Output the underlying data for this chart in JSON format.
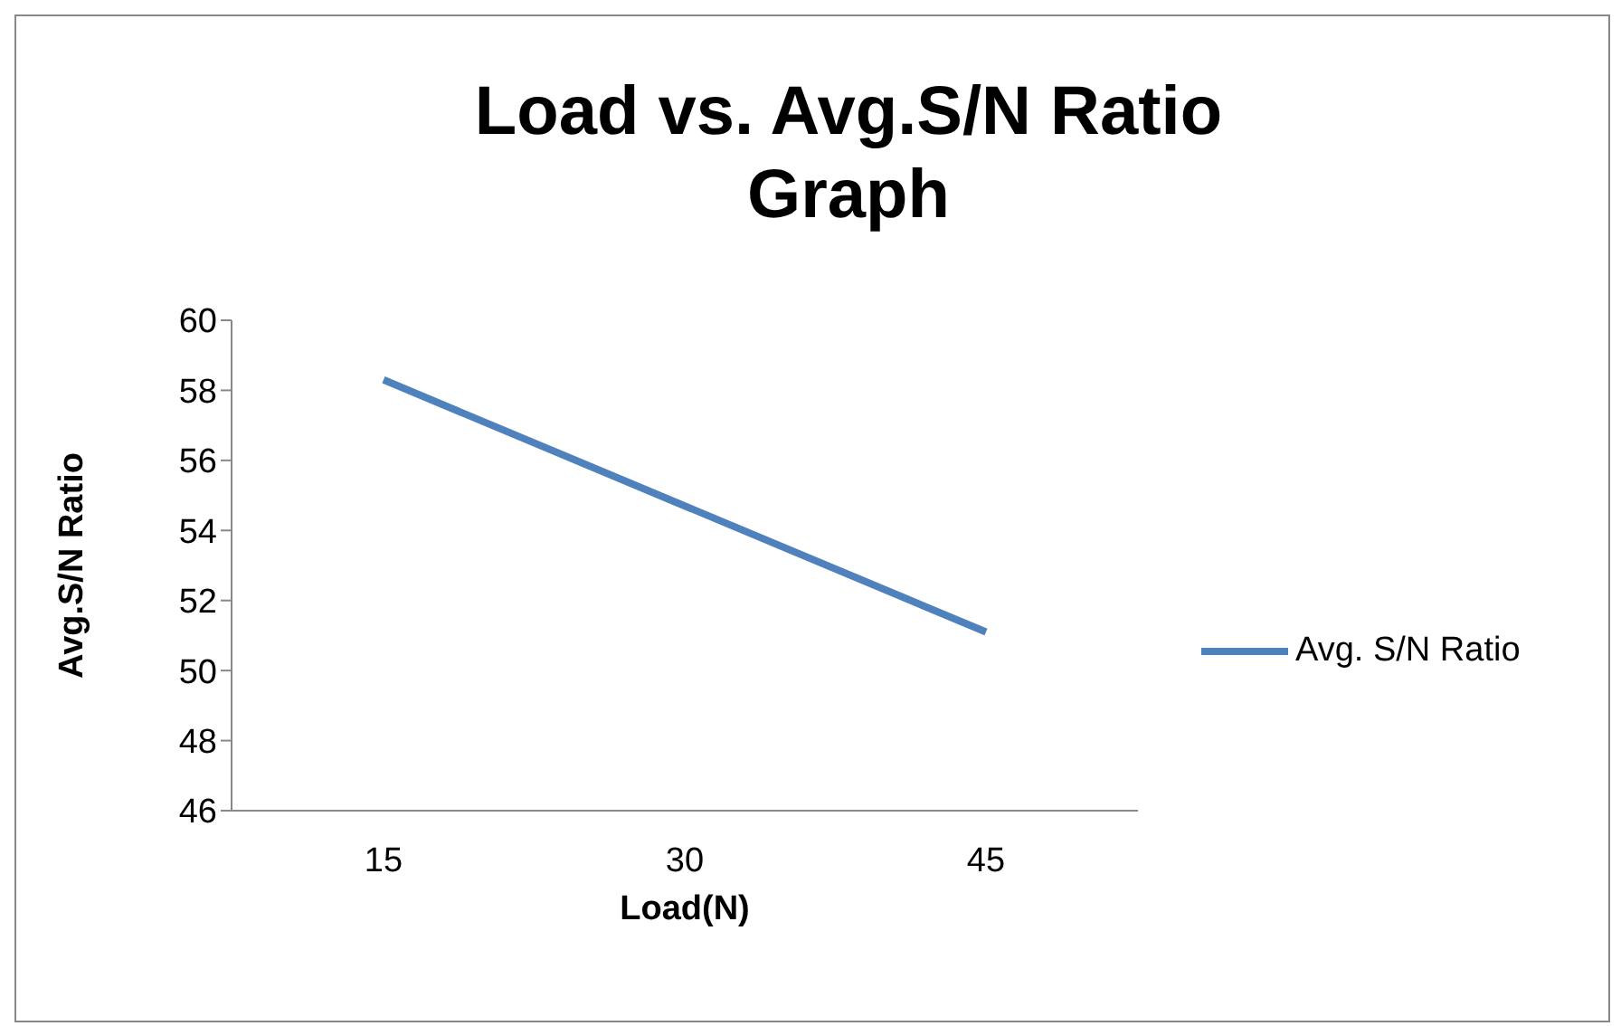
{
  "chart_data": {
    "type": "line",
    "title": "Load vs. Avg.S/N Ratio Graph",
    "xlabel": "Load(N)",
    "ylabel": "Avg.S/N Ratio",
    "categories": [
      "15",
      "30",
      "45"
    ],
    "series": [
      {
        "name": "Avg. S/N Ratio",
        "color": "#4f81bd",
        "values": [
          58.3,
          54.7,
          51.1
        ]
      }
    ],
    "ylim": [
      46,
      60
    ],
    "yticks": [
      46,
      48,
      50,
      52,
      54,
      56,
      58,
      60
    ],
    "grid": false,
    "legend": "right",
    "marker": "none",
    "line_style": "solid"
  }
}
